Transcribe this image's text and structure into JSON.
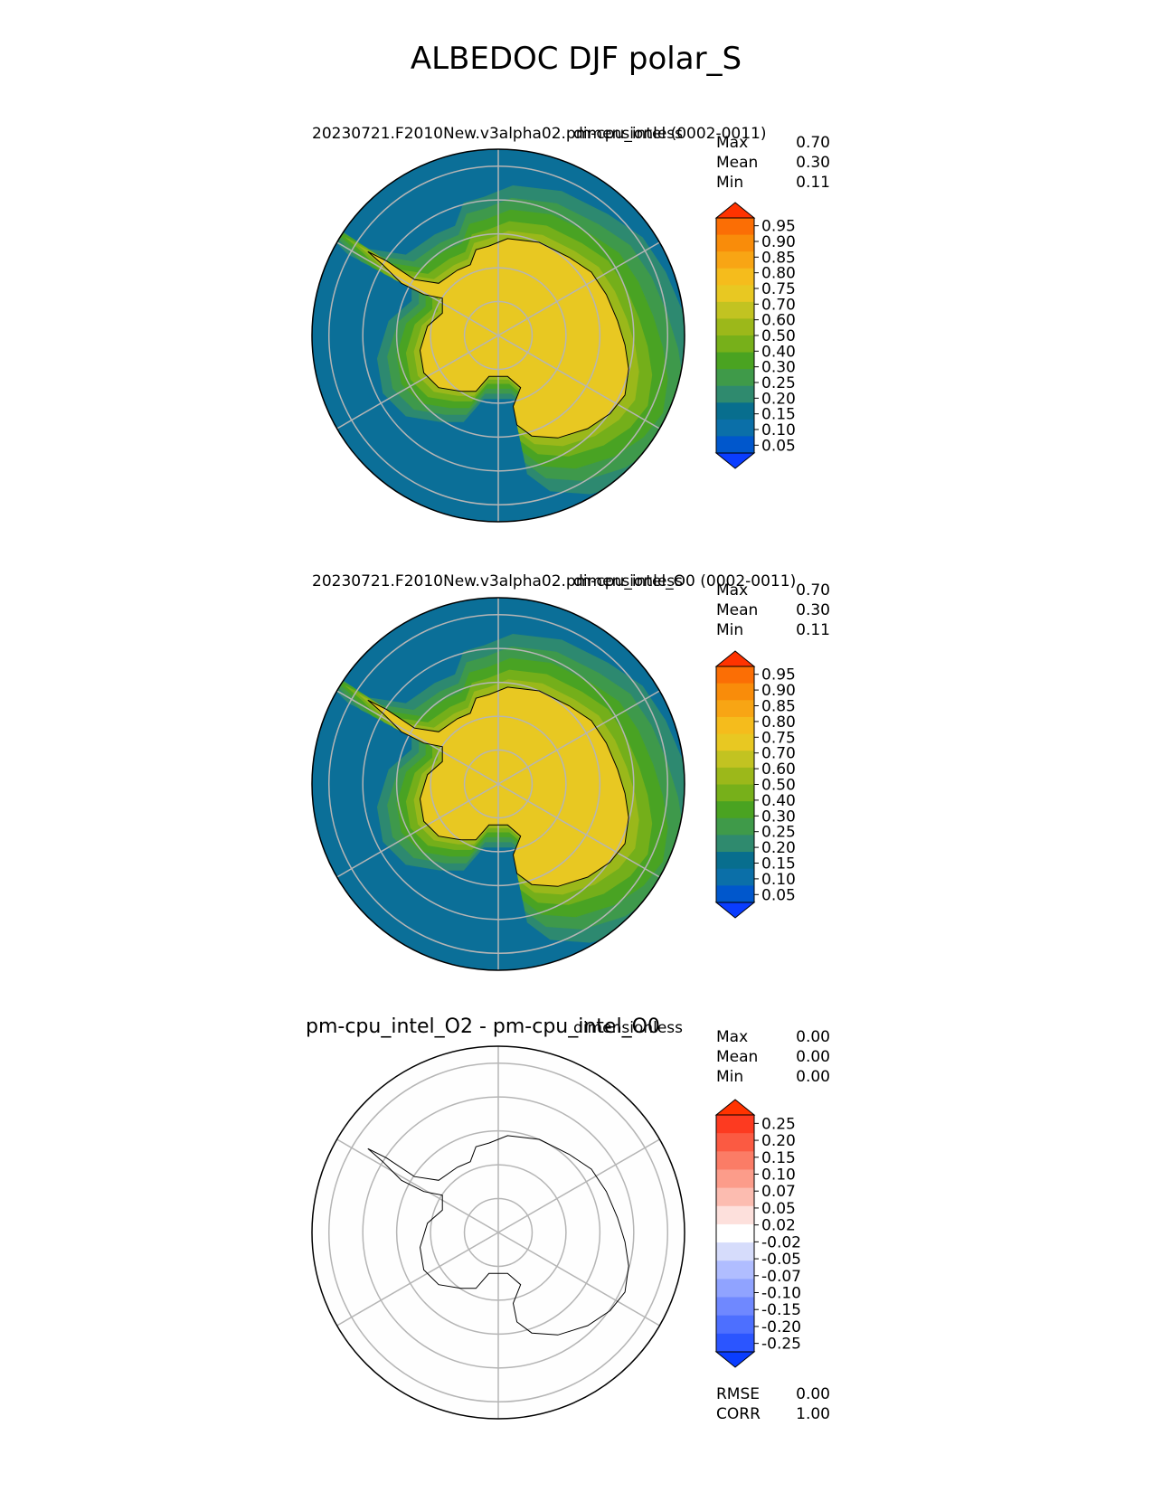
{
  "figure": {
    "title": "ALBEDOC DJF polar_S"
  },
  "chart_data": [
    {
      "type": "heatmap",
      "projection": "polar-stereographic-south",
      "title_left": "20230721.F2010New.v3alpha02.pm-cpu_intel (0002-0011)",
      "title_right": "dimensionless",
      "stats": [
        {
          "label": "Max",
          "value": "0.70"
        },
        {
          "label": "Mean",
          "value": "0.30"
        },
        {
          "label": "Min",
          "value": "0.11"
        }
      ],
      "colorbar": {
        "levels": [
          "0.05",
          "0.10",
          "0.15",
          "0.20",
          "0.25",
          "0.30",
          "0.40",
          "0.50",
          "0.60",
          "0.70",
          "0.75",
          "0.80",
          "0.85",
          "0.90",
          "0.95"
        ],
        "colors": [
          "#0a3dff",
          "#0057cc",
          "#0b6fa8",
          "#086e8e",
          "#2f8a6e",
          "#3f9a49",
          "#4aa321",
          "#77b01a",
          "#9cb81a",
          "#c2c321",
          "#e8c822",
          "#f5bc1c",
          "#f8a514",
          "#f98c0a",
          "#fb6e05",
          "#ff3300"
        ],
        "extend": "both"
      },
      "field": {
        "ocean": "#0b6f98",
        "land": "#e8c822"
      }
    },
    {
      "type": "heatmap",
      "projection": "polar-stereographic-south",
      "title_left": "20230721.F2010New.v3alpha02.pm-cpu_intel_O0 (0002-0011)",
      "title_right": "dimensionless",
      "stats": [
        {
          "label": "Max",
          "value": "0.70"
        },
        {
          "label": "Mean",
          "value": "0.30"
        },
        {
          "label": "Min",
          "value": "0.11"
        }
      ],
      "colorbar": {
        "levels": [
          "0.05",
          "0.10",
          "0.15",
          "0.20",
          "0.25",
          "0.30",
          "0.40",
          "0.50",
          "0.60",
          "0.70",
          "0.75",
          "0.80",
          "0.85",
          "0.90",
          "0.95"
        ],
        "colors": [
          "#0a3dff",
          "#0057cc",
          "#0b6fa8",
          "#086e8e",
          "#2f8a6e",
          "#3f9a49",
          "#4aa321",
          "#77b01a",
          "#9cb81a",
          "#c2c321",
          "#e8c822",
          "#f5bc1c",
          "#f8a514",
          "#f98c0a",
          "#fb6e05",
          "#ff3300"
        ],
        "extend": "both"
      },
      "field": {
        "ocean": "#0b6f98",
        "land": "#e8c822"
      }
    },
    {
      "type": "heatmap",
      "projection": "polar-stereographic-south",
      "title_left": "pm-cpu_intel_O2 - pm-cpu_intel_O0",
      "title_right": "dimensionless",
      "stats": [
        {
          "label": "Max",
          "value": "0.00"
        },
        {
          "label": "Mean",
          "value": "0.00"
        },
        {
          "label": "Min",
          "value": "0.00"
        }
      ],
      "colorbar": {
        "levels": [
          "-0.25",
          "-0.20",
          "-0.15",
          "-0.10",
          "-0.07",
          "-0.05",
          "-0.02",
          "0.02",
          "0.05",
          "0.07",
          "0.10",
          "0.15",
          "0.20",
          "0.25"
        ],
        "colors": [
          "#0a3dff",
          "#2b55ff",
          "#4d6fff",
          "#6f88ff",
          "#90a3ff",
          "#b0bdff",
          "#d6dcfb",
          "#ffffff",
          "#fde0dc",
          "#fcbcb0",
          "#fc9c8a",
          "#fb7c66",
          "#fb5a42",
          "#fd3a20",
          "#ff3300"
        ],
        "extend": "both"
      },
      "field": {
        "ocean": "#fefefe",
        "land": "#fefefe"
      },
      "extra_stats": [
        {
          "label": "RMSE",
          "value": "0.00"
        },
        {
          "label": "CORR",
          "value": "1.00"
        }
      ]
    }
  ]
}
